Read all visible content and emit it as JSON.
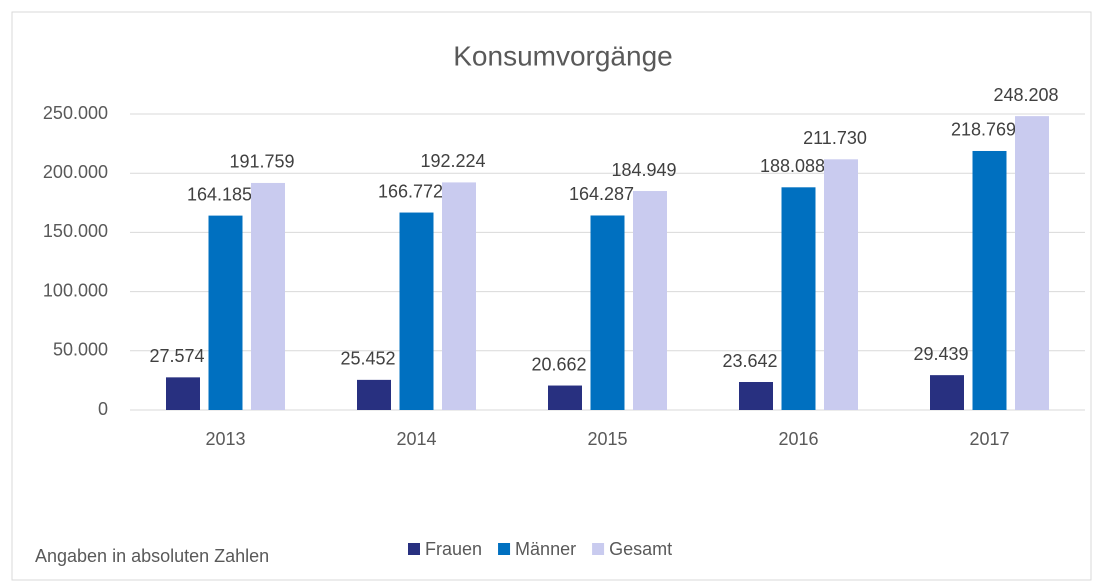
{
  "chart_data": {
    "type": "bar",
    "title": "Konsumvorgänge",
    "annotation": "Angaben in absoluten Zahlen",
    "categories": [
      "2013",
      "2014",
      "2015",
      "2016",
      "2017"
    ],
    "series": [
      {
        "name": "Frauen",
        "color": "#283080",
        "values": [
          27574,
          25452,
          20662,
          23642,
          29439
        ],
        "value_labels": [
          "27.574",
          "25.452",
          "20.662",
          "23.642",
          "29.439"
        ]
      },
      {
        "name": "Männer",
        "color": "#0070c0",
        "values": [
          164185,
          166772,
          164287,
          188088,
          218769
        ],
        "value_labels": [
          "164.185",
          "166.772",
          "164.287",
          "188.088",
          "218.769"
        ]
      },
      {
        "name": "Gesamt",
        "color": "#c9cbef",
        "values": [
          191759,
          192224,
          184949,
          211730,
          248208
        ],
        "value_labels": [
          "191.759",
          "192.224",
          "184.949",
          "211.730",
          "248.208"
        ]
      }
    ],
    "ylim": [
      0,
      250000
    ],
    "yticks": [
      0,
      {
        "value": 50000,
        "label": "50.000"
      },
      {
        "value": 100000,
        "label": "100.000"
      },
      {
        "value": 150000,
        "label": "150.000"
      },
      {
        "value": 200000,
        "label": "200.000"
      },
      {
        "value": 250000,
        "label": "250.000"
      }
    ],
    "grid": true,
    "legend": "bottom"
  }
}
